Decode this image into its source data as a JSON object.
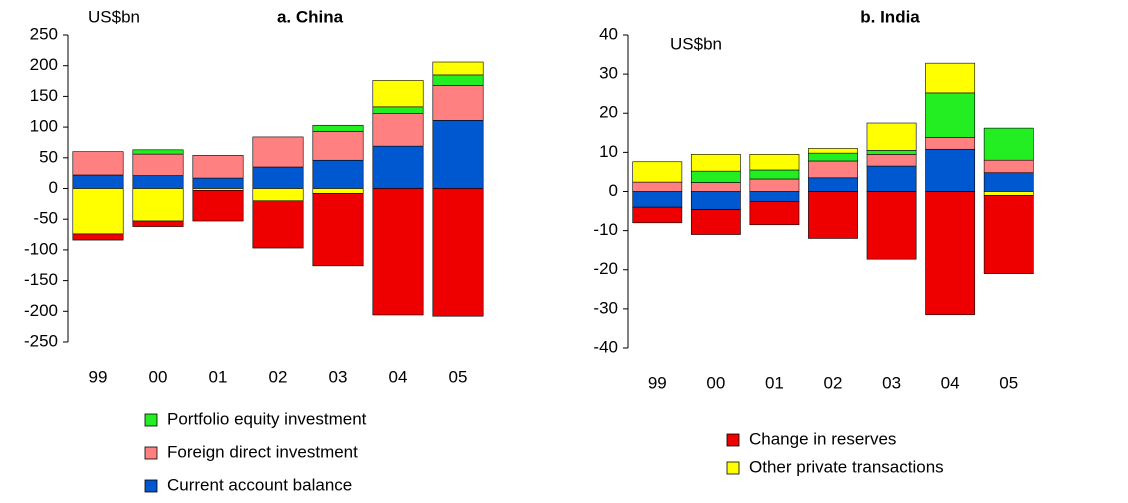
{
  "chart_data": [
    {
      "type": "bar",
      "stacked": true,
      "title": "a. China",
      "y_label": "US$bn",
      "categories": [
        "99",
        "00",
        "01",
        "02",
        "03",
        "04",
        "05"
      ],
      "ylim": [
        -250,
        250
      ],
      "yticks": [
        -250,
        -200,
        -150,
        -100,
        -50,
        0,
        50,
        100,
        150,
        200,
        250
      ],
      "series": [
        {
          "name": "Current account balance",
          "color": "#0058d0",
          "in_legend": true,
          "values": [
            22,
            21,
            17,
            35,
            46,
            69,
            111
          ]
        },
        {
          "name": "Foreign direct investment",
          "color": "#ff8080",
          "in_legend": true,
          "values": [
            38,
            35,
            37,
            49,
            47,
            53,
            57
          ]
        },
        {
          "name": "Portfolio equity investment",
          "color": "#22ee22",
          "in_legend": true,
          "values": [
            0,
            7,
            0,
            0,
            10,
            11,
            17
          ]
        },
        {
          "name": "Other private transactions",
          "color": "#ffff00",
          "in_legend": false,
          "values": [
            -74,
            -53,
            -3,
            -20,
            -8,
            43,
            21
          ]
        },
        {
          "name": "Change in reserves",
          "color": "#ee0000",
          "in_legend": false,
          "values": [
            -10,
            -9,
            -50,
            -77,
            -118,
            -206,
            -208
          ]
        }
      ]
    },
    {
      "type": "bar",
      "stacked": true,
      "title": "b. India",
      "y_label": "US$bn",
      "categories": [
        "99",
        "00",
        "01",
        "02",
        "03",
        "04",
        "05"
      ],
      "ylim": [
        -40,
        40
      ],
      "yticks": [
        -40,
        -30,
        -20,
        -10,
        0,
        10,
        20,
        30,
        40
      ],
      "series": [
        {
          "name": "Current account balance",
          "color": "#0058d0",
          "in_legend": false,
          "values": [
            -4,
            -4.6,
            -2.5,
            3.5,
            6.5,
            10.8,
            4.8
          ]
        },
        {
          "name": "Foreign direct investment",
          "color": "#ff8080",
          "in_legend": false,
          "values": [
            2.4,
            2.3,
            3.2,
            4.3,
            3,
            3,
            3.2
          ]
        },
        {
          "name": "Portfolio equity investment",
          "color": "#22ee22",
          "in_legend": false,
          "values": [
            0,
            2.9,
            2.3,
            2,
            1,
            11.4,
            8.2
          ]
        },
        {
          "name": "Other private transactions",
          "color": "#ffff00",
          "in_legend": true,
          "values": [
            5.2,
            4.3,
            4,
            1.2,
            7,
            7.6,
            -1
          ]
        },
        {
          "name": "Change in reserves",
          "color": "#ee0000",
          "in_legend": true,
          "values": [
            -4,
            -6.4,
            -6,
            -12,
            -17.3,
            -31.5,
            -20
          ]
        }
      ]
    }
  ]
}
